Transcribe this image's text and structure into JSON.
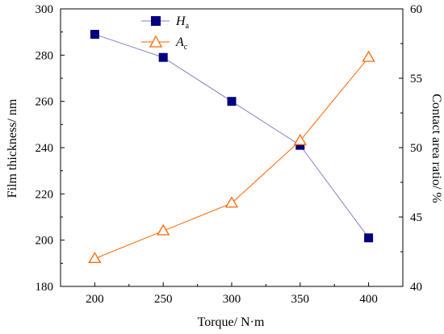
{
  "chart_data": {
    "type": "line",
    "x": [
      200,
      250,
      300,
      350,
      400
    ],
    "xlabel": "Torque/ N·m",
    "xlim": [
      175,
      425
    ],
    "xticks": [
      200,
      250,
      300,
      350,
      400
    ],
    "ylabel_left": "Film thickness/ nm",
    "ylim_left": [
      180,
      300
    ],
    "yticks_left": [
      180,
      200,
      220,
      240,
      260,
      280,
      300
    ],
    "ylabel_right": "Contact area ratio/ %",
    "ylim_right": [
      40,
      60
    ],
    "yticks_right": [
      40,
      45,
      50,
      55,
      60
    ],
    "legend_position": "top-center",
    "grid": false,
    "series": [
      {
        "name": "H",
        "name_sub": "a",
        "axis": "left",
        "marker": "filled-square",
        "color": "#000080",
        "line_color": "#8080c8",
        "values": [
          289,
          279,
          260,
          241,
          201
        ]
      },
      {
        "name": "A",
        "name_sub": "c",
        "axis": "right",
        "marker": "open-triangle",
        "color": "#ff6600",
        "line_color": "#ff6600",
        "values": [
          42,
          44,
          46,
          50.5,
          56.5
        ]
      }
    ]
  }
}
